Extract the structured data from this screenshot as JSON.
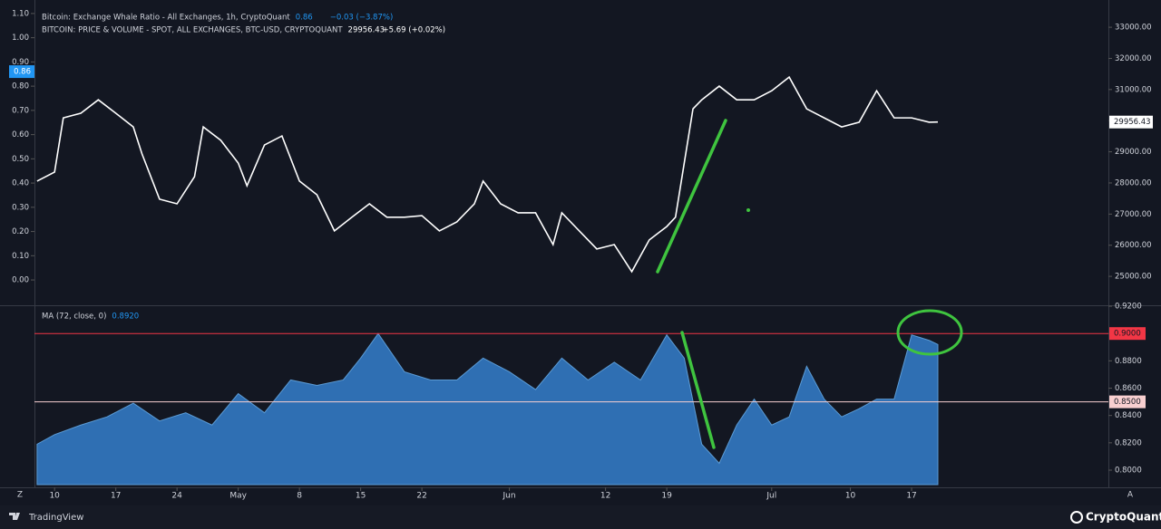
{
  "chart_data": [
    {
      "type": "line",
      "legend": [
        {
          "name": "Bitcoin: Exchange Whale Ratio - All Exchanges, 1h, CryptoQuant",
          "value": 0.86,
          "change": "−0.03 (−3.87%)",
          "color": "#2196f3"
        },
        {
          "name": "BITCOIN: PRICE & VOLUME - SPOT, ALL EXCHANGES, BTC-USD, CRYPTOQUANT",
          "value": 29956.43,
          "change": "+5.69 (+0.02%)",
          "color": "#ffffff"
        }
      ],
      "x": [
        -2,
        0,
        1,
        3,
        5,
        7,
        9,
        10,
        12,
        14,
        16,
        17,
        19,
        21,
        22,
        24,
        26,
        28,
        30,
        32,
        34,
        36,
        38,
        40,
        42,
        44,
        46,
        48,
        49,
        51,
        53,
        55,
        57,
        58,
        60,
        62,
        64,
        66,
        68,
        70,
        71,
        72,
        73,
        74,
        76,
        78,
        80,
        82,
        84,
        86,
        88,
        90,
        92,
        94,
        96,
        98,
        100,
        101
      ],
      "series": [
        {
          "name": "BITCOIN: PRICE & VOLUME - SPOT, ALL EXCHANGES, BTC-USD, CRYPTOQUANT",
          "color": "#ffffff",
          "axis": "y2",
          "values": [
            28060,
            28350,
            30090,
            30240,
            30670,
            30240,
            29800,
            28930,
            27480,
            27330,
            28200,
            29800,
            29370,
            28640,
            27910,
            29220,
            29510,
            28060,
            27620,
            26460,
            26900,
            27330,
            26900,
            26900,
            26950,
            26460,
            26750,
            27330,
            28060,
            27330,
            27040,
            27040,
            26020,
            27040,
            26460,
            25880,
            26020,
            25150,
            26170,
            26600,
            26900,
            28640,
            30380,
            30670,
            31110,
            30670,
            30670,
            30960,
            31400,
            30380,
            30090,
            29800,
            29950,
            30960,
            30090,
            30090,
            29950,
            29956.43
          ]
        }
      ],
      "xlim": [
        -2.3,
        120.5
      ],
      "ylim": [
        -0.097,
        1.137
      ],
      "yticks": [
        {
          "value": 0,
          "label": "0.00"
        },
        {
          "value": 0.1,
          "label": "0.10"
        },
        {
          "value": 0.2,
          "label": "0.20"
        },
        {
          "value": 0.3,
          "label": "0.30"
        },
        {
          "value": 0.4,
          "label": "0.40"
        },
        {
          "value": 0.5,
          "label": "0.50"
        },
        {
          "value": 0.6,
          "label": "0.60"
        },
        {
          "value": 0.7,
          "label": "0.70"
        },
        {
          "value": 0.8,
          "label": "0.80"
        },
        {
          "value": 0.9,
          "label": "0.90"
        },
        {
          "value": 1,
          "label": "1.00"
        },
        {
          "value": 1.1,
          "label": "1.10"
        }
      ],
      "y2lim": [
        24130,
        33730
      ],
      "y2ticks": [
        {
          "value": 25000,
          "label": "25000.00"
        },
        {
          "value": 26000,
          "label": "26000.00"
        },
        {
          "value": 27000,
          "label": "27000.00"
        },
        {
          "value": 28000,
          "label": "28000.00"
        },
        {
          "value": 29000,
          "label": "29000.00"
        },
        {
          "value": 30000,
          "label": "30000.00"
        },
        {
          "value": 31000,
          "label": "31000.00"
        },
        {
          "value": 32000,
          "label": "32000.00"
        },
        {
          "value": 33000,
          "label": "33000.00"
        }
      ]
    },
    {
      "type": "area",
      "title": "MA (72, close, 0)",
      "last_value": 0.892,
      "last_label": "0.8920",
      "x": [
        -2,
        0,
        3,
        6,
        9,
        12,
        15,
        18,
        21,
        24,
        27,
        30,
        33,
        35,
        37,
        40,
        43,
        46,
        49,
        52,
        55,
        58,
        61,
        64,
        67,
        70,
        72,
        74,
        76,
        78,
        80,
        82,
        84,
        86,
        88,
        90,
        92,
        94,
        96,
        98,
        100,
        101
      ],
      "series": [
        {
          "name": "MA (72, close, 0)",
          "color": "#2f6fb3",
          "values": [
            0.819,
            0.826,
            0.833,
            0.839,
            0.849,
            0.836,
            0.842,
            0.833,
            0.856,
            0.842,
            0.866,
            0.862,
            0.866,
            0.882,
            0.9,
            0.872,
            0.866,
            0.866,
            0.882,
            0.872,
            0.859,
            0.882,
            0.866,
            0.879,
            0.866,
            0.899,
            0.882,
            0.819,
            0.805,
            0.833,
            0.852,
            0.833,
            0.839,
            0.876,
            0.852,
            0.839,
            0.845,
            0.852,
            0.852,
            0.899,
            0.895,
            0.892
          ]
        }
      ],
      "levels": [
        {
          "value": 0.9,
          "label": "0.9000",
          "color": "#f23645"
        },
        {
          "value": 0.85,
          "label": "0.8500",
          "color": "#f8cfd0"
        }
      ],
      "xlim": [
        -2.3,
        120.5
      ],
      "ylim": [
        0.7894,
        0.9187
      ],
      "y2ticks": [
        {
          "value": 0.8,
          "label": "0.8000"
        },
        {
          "value": 0.82,
          "label": "0.8200"
        },
        {
          "value": 0.84,
          "label": "0.8400"
        },
        {
          "value": 0.86,
          "label": "0.8600"
        },
        {
          "value": 0.88,
          "label": "0.8800"
        },
        {
          "value": 0.9,
          "label": "0.9000"
        },
        {
          "value": 0.92,
          "label": "0.9200"
        }
      ],
      "xticks": [
        {
          "value": 0,
          "label": "10"
        },
        {
          "value": 7,
          "label": "17"
        },
        {
          "value": 14,
          "label": "24"
        },
        {
          "value": 21,
          "label": "May"
        },
        {
          "value": 28,
          "label": "8"
        },
        {
          "value": 35,
          "label": "15"
        },
        {
          "value": 42,
          "label": "22"
        },
        {
          "value": 52,
          "label": "Jun"
        },
        {
          "value": 63,
          "label": "12"
        },
        {
          "value": 70,
          "label": "19"
        },
        {
          "value": 82,
          "label": "Jul"
        },
        {
          "value": 91,
          "label": "10"
        },
        {
          "value": 98,
          "label": "17"
        }
      ]
    }
  ],
  "branding": {
    "left": "TradingView",
    "right": "CryptoQuant",
    "corner_left": "Z",
    "corner_right": "A"
  }
}
